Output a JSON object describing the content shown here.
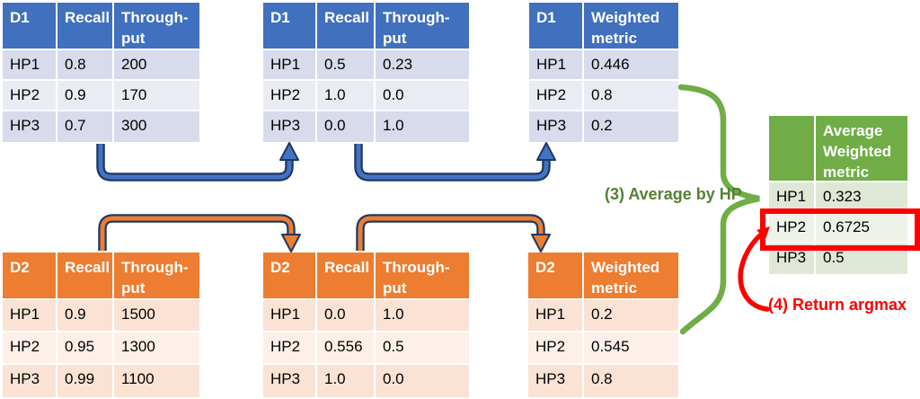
{
  "colors": {
    "blue_header": "#4170be",
    "blue_band_a": "#d7dbeb",
    "blue_band_b": "#eaecf5",
    "orange_header": "#ed7d31",
    "orange_band_a": "#fae3d5",
    "orange_band_b": "#fcf0e9",
    "green_header": "#70ad47",
    "green_band_a": "#dfe8d6",
    "green_band_b": "#eef3ea",
    "arrow_blue": "#4472c4",
    "arrow_orange": "#ed7d31",
    "arrow_outline": "#1f3864",
    "brace_green": "#70ad47",
    "annotation_green": "#548235",
    "annotation_red": "#ff0000",
    "highlight_red": "#ff0000"
  },
  "annotations": {
    "step3_label": "(3) Average by HP",
    "step4_label": "(4) Return argmax"
  },
  "tables": {
    "d1_raw": {
      "theme": "blue",
      "header": [
        "D1",
        "Recall",
        "Through-\nput"
      ],
      "rows": [
        [
          "HP1",
          "0.8",
          "200"
        ],
        [
          "HP2",
          "0.9",
          "170"
        ],
        [
          "HP3",
          "0.7",
          "300"
        ]
      ]
    },
    "d1_normalized": {
      "theme": "blue",
      "header": [
        "D1",
        "Recall",
        "Through-\nput"
      ],
      "rows": [
        [
          "HP1",
          "0.5",
          "0.23"
        ],
        [
          "HP2",
          "1.0",
          "0.0"
        ],
        [
          "HP3",
          "0.0",
          "1.0"
        ]
      ]
    },
    "d1_weighted": {
      "theme": "blue",
      "header": [
        "D1",
        "Weighted\nmetric"
      ],
      "rows": [
        [
          "HP1",
          "0.446"
        ],
        [
          "HP2",
          "0.8"
        ],
        [
          "HP3",
          "0.2"
        ]
      ]
    },
    "d2_raw": {
      "theme": "orange",
      "header": [
        "D2",
        "Recall",
        "Through-\nput"
      ],
      "rows": [
        [
          "HP1",
          "0.9",
          "1500"
        ],
        [
          "HP2",
          "0.95",
          "1300"
        ],
        [
          "HP3",
          "0.99",
          "1100"
        ]
      ]
    },
    "d2_normalized": {
      "theme": "orange",
      "header": [
        "D2",
        "Recall",
        "Through-\nput"
      ],
      "rows": [
        [
          "HP1",
          "0.0",
          "1.0"
        ],
        [
          "HP2",
          "0.556",
          "0.5"
        ],
        [
          "HP3",
          "1.0",
          "0.0"
        ]
      ]
    },
    "d2_weighted": {
      "theme": "orange",
      "header": [
        "D2",
        "Weighted\nmetric"
      ],
      "rows": [
        [
          "HP1",
          "0.2"
        ],
        [
          "HP2",
          "0.545"
        ],
        [
          "HP3",
          "0.8"
        ]
      ]
    },
    "average": {
      "theme": "green",
      "header": [
        "",
        "Average\nWeighted\nmetric"
      ],
      "rows": [
        [
          "HP1",
          "0.323"
        ],
        [
          "HP2",
          "0.6725"
        ],
        [
          "HP3",
          "0.5"
        ]
      ],
      "highlighted_row_index": 1,
      "highlighted_row": "HP2",
      "highlighted_value": "0.6725"
    }
  }
}
